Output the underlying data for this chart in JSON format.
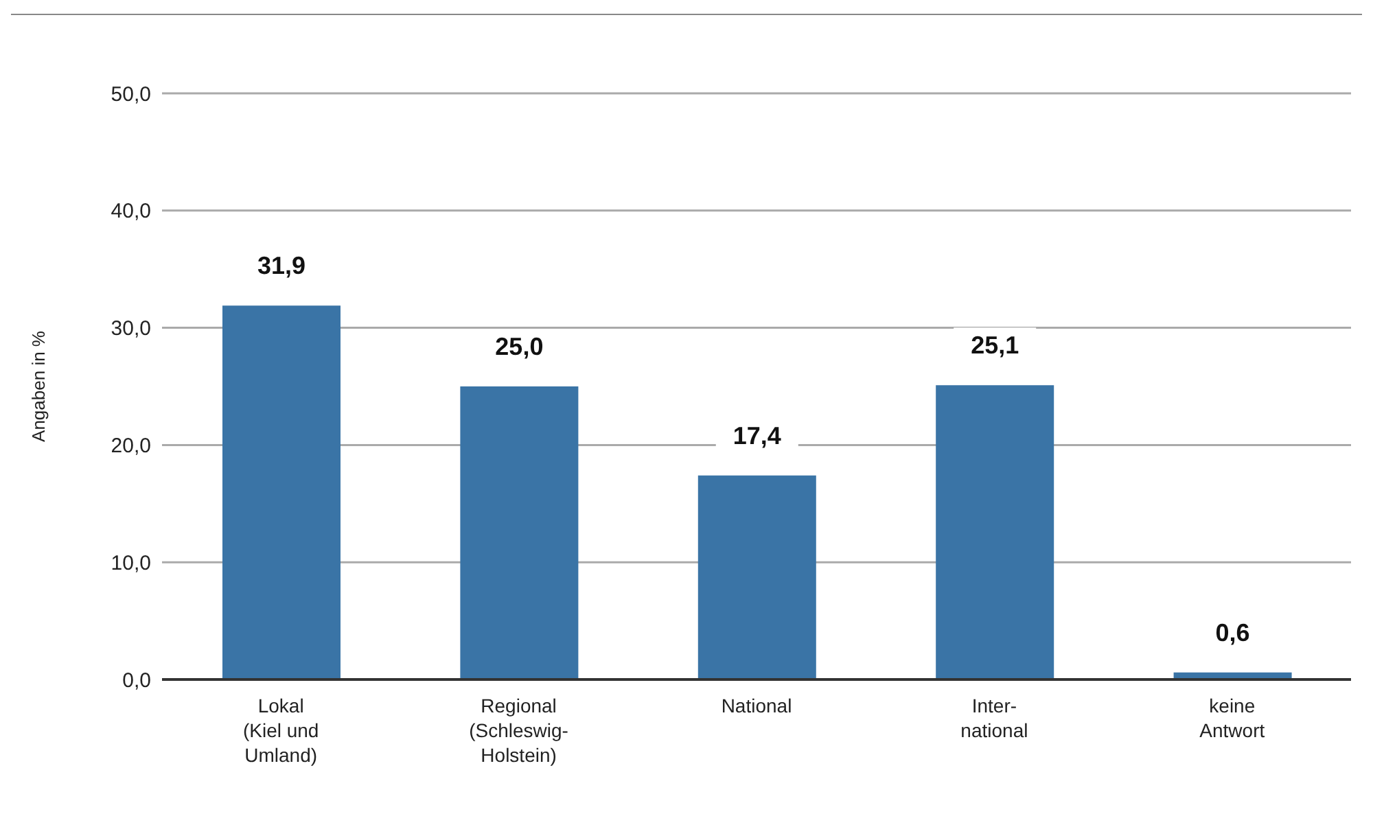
{
  "chart_data": {
    "type": "bar",
    "ylabel": "Angaben in %",
    "categories": [
      "Lokal\n(Kiel und\nUmland)",
      "Regional\n(Schleswig-\nHolstein)",
      "National",
      "Inter-\nnational",
      "keine\nAntwort"
    ],
    "values": [
      31.9,
      25.0,
      17.4,
      25.1,
      0.6
    ],
    "value_labels": [
      "31,9",
      "25,0",
      "17,4",
      "25,1",
      "0,6"
    ],
    "color": "#3a74a6",
    "ylim": [
      0,
      50
    ],
    "yticks": [
      {
        "value": 0,
        "label": "0,0"
      },
      {
        "value": 10,
        "label": "10,0"
      },
      {
        "value": 20,
        "label": "20,0"
      },
      {
        "value": 30,
        "label": "30,0"
      },
      {
        "value": 40,
        "label": "40,0"
      },
      {
        "value": 50,
        "label": "50,0"
      }
    ],
    "grid": "y"
  }
}
